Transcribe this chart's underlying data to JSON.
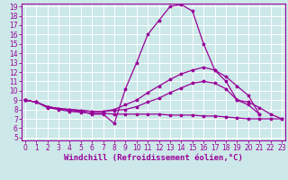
{
  "background_color": "#cce8e8",
  "line_color": "#990099",
  "grid_color": "#aacccc",
  "xlabel": "Windchill (Refroidissement éolien,°C)",
  "xlim_min": 0,
  "xlim_max": 23,
  "ylim_min": 5,
  "ylim_max": 19,
  "xticks": [
    0,
    1,
    2,
    3,
    4,
    5,
    6,
    7,
    8,
    9,
    10,
    11,
    12,
    13,
    14,
    15,
    16,
    17,
    18,
    19,
    20,
    21,
    22,
    23
  ],
  "yticks": [
    5,
    6,
    7,
    8,
    9,
    10,
    11,
    12,
    13,
    14,
    15,
    16,
    17,
    18,
    19
  ],
  "series1_x": [
    0,
    1,
    2,
    3,
    4,
    5,
    6,
    7,
    8,
    9,
    10,
    11,
    12,
    13,
    14,
    15,
    16,
    17,
    18,
    19,
    20,
    21,
    22,
    23
  ],
  "series1_y": [
    9.0,
    8.8,
    8.3,
    8.1,
    7.9,
    7.8,
    7.5,
    7.5,
    6.5,
    10.2,
    13.0,
    16.0,
    17.5,
    19.0,
    19.2,
    18.5,
    15.0,
    12.2,
    11.0,
    9.0,
    8.8,
    8.2,
    7.5,
    7.0
  ],
  "series2_x": [
    0,
    1,
    2,
    3,
    4,
    5,
    6,
    7,
    8,
    9,
    10,
    11,
    12,
    13,
    14,
    15,
    16,
    17,
    18,
    19,
    20,
    21
  ],
  "series2_y": [
    9.0,
    8.8,
    8.3,
    8.1,
    8.0,
    7.9,
    7.8,
    7.8,
    8.0,
    8.5,
    9.0,
    9.8,
    10.5,
    11.2,
    11.8,
    12.2,
    12.5,
    12.2,
    11.5,
    10.5,
    9.5,
    7.5
  ],
  "series3_x": [
    0,
    1,
    2,
    3,
    4,
    5,
    6,
    7,
    8,
    9,
    10,
    11,
    12,
    13,
    14,
    15,
    16,
    17,
    18,
    19,
    20,
    21
  ],
  "series3_y": [
    9.0,
    8.8,
    8.3,
    8.1,
    8.0,
    7.9,
    7.8,
    7.8,
    7.9,
    8.0,
    8.3,
    8.8,
    9.2,
    9.8,
    10.3,
    10.8,
    11.0,
    10.8,
    10.2,
    9.0,
    8.5,
    7.5
  ],
  "series4_x": [
    0,
    1,
    2,
    3,
    4,
    5,
    6,
    7,
    8,
    9,
    10,
    11,
    12,
    13,
    14,
    15,
    16,
    17,
    18,
    19,
    20,
    21,
    22,
    23
  ],
  "series4_y": [
    9.0,
    8.8,
    8.2,
    8.0,
    7.8,
    7.7,
    7.6,
    7.6,
    7.5,
    7.5,
    7.5,
    7.5,
    7.5,
    7.4,
    7.4,
    7.4,
    7.3,
    7.3,
    7.2,
    7.1,
    7.0,
    7.0,
    7.0,
    7.0
  ],
  "font_size_label": 6.5,
  "font_size_tick": 5.5
}
